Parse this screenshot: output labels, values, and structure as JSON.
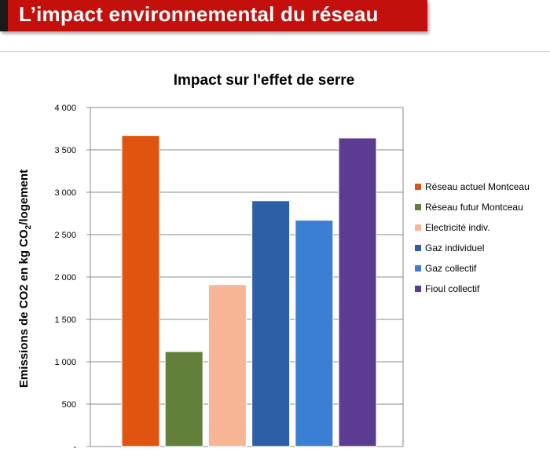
{
  "header": {
    "title": "L’impact environnemental du réseau"
  },
  "chart_data": {
    "type": "bar",
    "title": "Impact sur l'effet de serre",
    "ylabel_parts": [
      "Emissions de CO2 en kg CO",
      "2",
      "/logement"
    ],
    "ylim": [
      0,
      4000
    ],
    "yticks": [
      0,
      500,
      1000,
      1500,
      2000,
      2500,
      3000,
      3500,
      4000
    ],
    "ytick_labels": [
      "-",
      "500",
      "1 000",
      "1 500",
      "2 000",
      "2 500",
      "3 000",
      "3 500",
      "4 000"
    ],
    "grid": true,
    "legend_position": "right",
    "series": [
      {
        "name": "Réseau actuel Montceau",
        "value": 3670,
        "color": "#e0540f"
      },
      {
        "name": "Réseau futur Montceau",
        "value": 1120,
        "color": "#62803a"
      },
      {
        "name": "Electricité indiv.",
        "value": 1910,
        "color": "#f7b595"
      },
      {
        "name": "Gaz individuel",
        "value": 2900,
        "color": "#2d5fa6"
      },
      {
        "name": "Gaz collectif",
        "value": 2670,
        "color": "#3a7fd4"
      },
      {
        "name": "Fioul collectif",
        "value": 3640,
        "color": "#5c3c93"
      }
    ]
  }
}
